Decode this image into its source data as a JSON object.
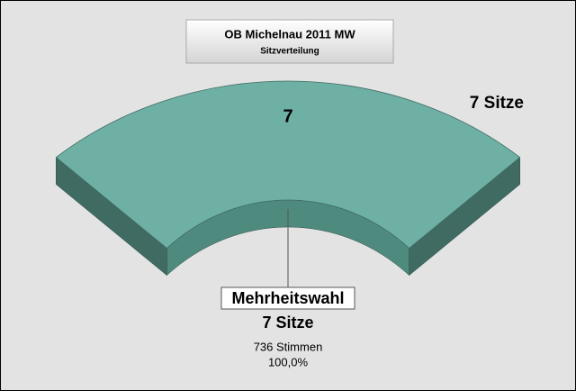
{
  "chart_data": {
    "type": "arc",
    "title": "OB Michelnau 2011 MW",
    "subtitle": "Sitzverteilung",
    "total_label": "7 Sitze",
    "categories": [
      "Mehrheitswahl"
    ],
    "values": [
      7
    ],
    "value_labels": [
      "7 Sitze"
    ],
    "votes": [
      736
    ],
    "vote_labels": [
      "736 Stimmen"
    ],
    "percent": [
      100
    ],
    "percent_labels": [
      "100,0%"
    ],
    "colors": [
      "#6fb0a4"
    ],
    "side_colors": [
      "#3f6b62"
    ]
  }
}
